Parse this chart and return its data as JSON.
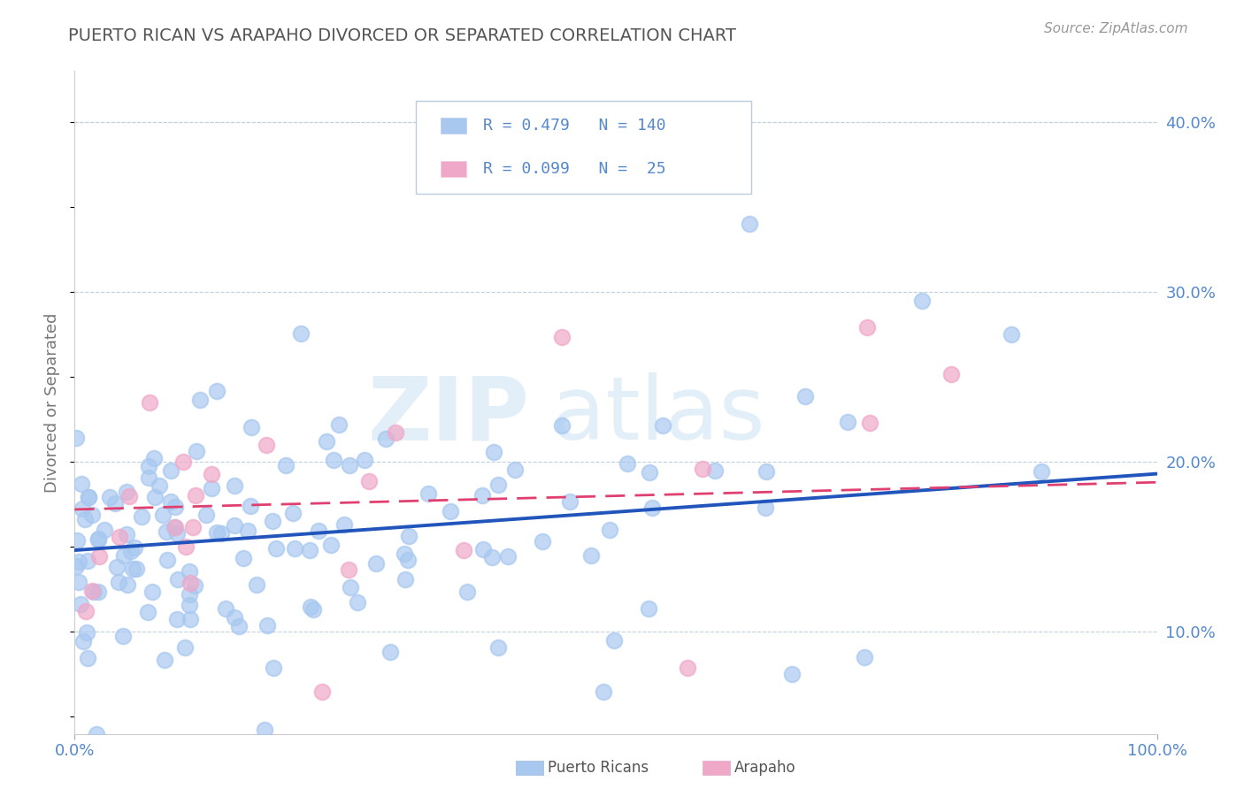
{
  "title": "PUERTO RICAN VS ARAPAHO DIVORCED OR SEPARATED CORRELATION CHART",
  "source": "Source: ZipAtlas.com",
  "ylabel": "Divorced or Separated",
  "pr_color": "#a8c8f0",
  "ar_color": "#f0a8c8",
  "pr_line_color": "#2255bb",
  "ar_line_color": "#e04070",
  "ar_line_style": "--",
  "watermark_zip": "ZIP",
  "watermark_atlas": "atlas",
  "background_color": "#ffffff",
  "grid_color": "#c0d0e0",
  "tick_color": "#5588cc",
  "xlim": [
    0.0,
    1.0
  ],
  "ylim": [
    0.04,
    0.43
  ],
  "y_ticks": [
    0.1,
    0.2,
    0.3,
    0.4
  ],
  "y_tick_labels": [
    "10.0%",
    "20.0%",
    "30.0%",
    "40.0%"
  ],
  "legend_pr_label": "R = 0.479   N = 140",
  "legend_ar_label": "R = 0.099   N =  25",
  "bottom_legend_pr": "Puerto Ricans",
  "bottom_legend_ar": "Arapaho",
  "pr_trend_start": 0.148,
  "pr_trend_end": 0.193,
  "ar_trend_start": 0.172,
  "ar_trend_end": 0.188
}
